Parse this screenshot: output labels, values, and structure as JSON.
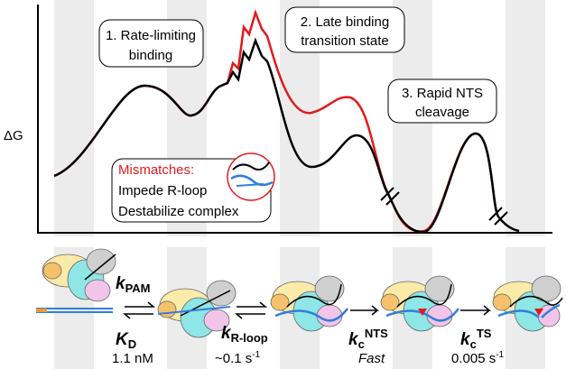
{
  "axis_label": "ΔG",
  "callouts": [
    {
      "line1": "1. Rate-limiting",
      "line2": "binding"
    },
    {
      "line1": "2. Late binding",
      "line2": "transition state"
    },
    {
      "line1": "3. Rapid NTS",
      "line2": "cleavage"
    }
  ],
  "mismatch": {
    "title": "Mismatches:",
    "lines": [
      "Impede R-loop",
      "Destabilize complex"
    ]
  },
  "rates": [
    {
      "symbol": "k",
      "sub": "PAM"
    },
    {
      "symbol": "K",
      "sub": "D",
      "value": "1.1 nM"
    },
    {
      "symbol": "k",
      "sub": "R-loop",
      "value": "~0.1 s",
      "value_sup": "-1"
    },
    {
      "symbol": "k",
      "sub": "c",
      "sup": "NTS",
      "value": "Fast"
    },
    {
      "symbol": "k",
      "sub": "c",
      "sup": "TS",
      "value": "0.005 s",
      "value_sup": "-1"
    }
  ]
}
